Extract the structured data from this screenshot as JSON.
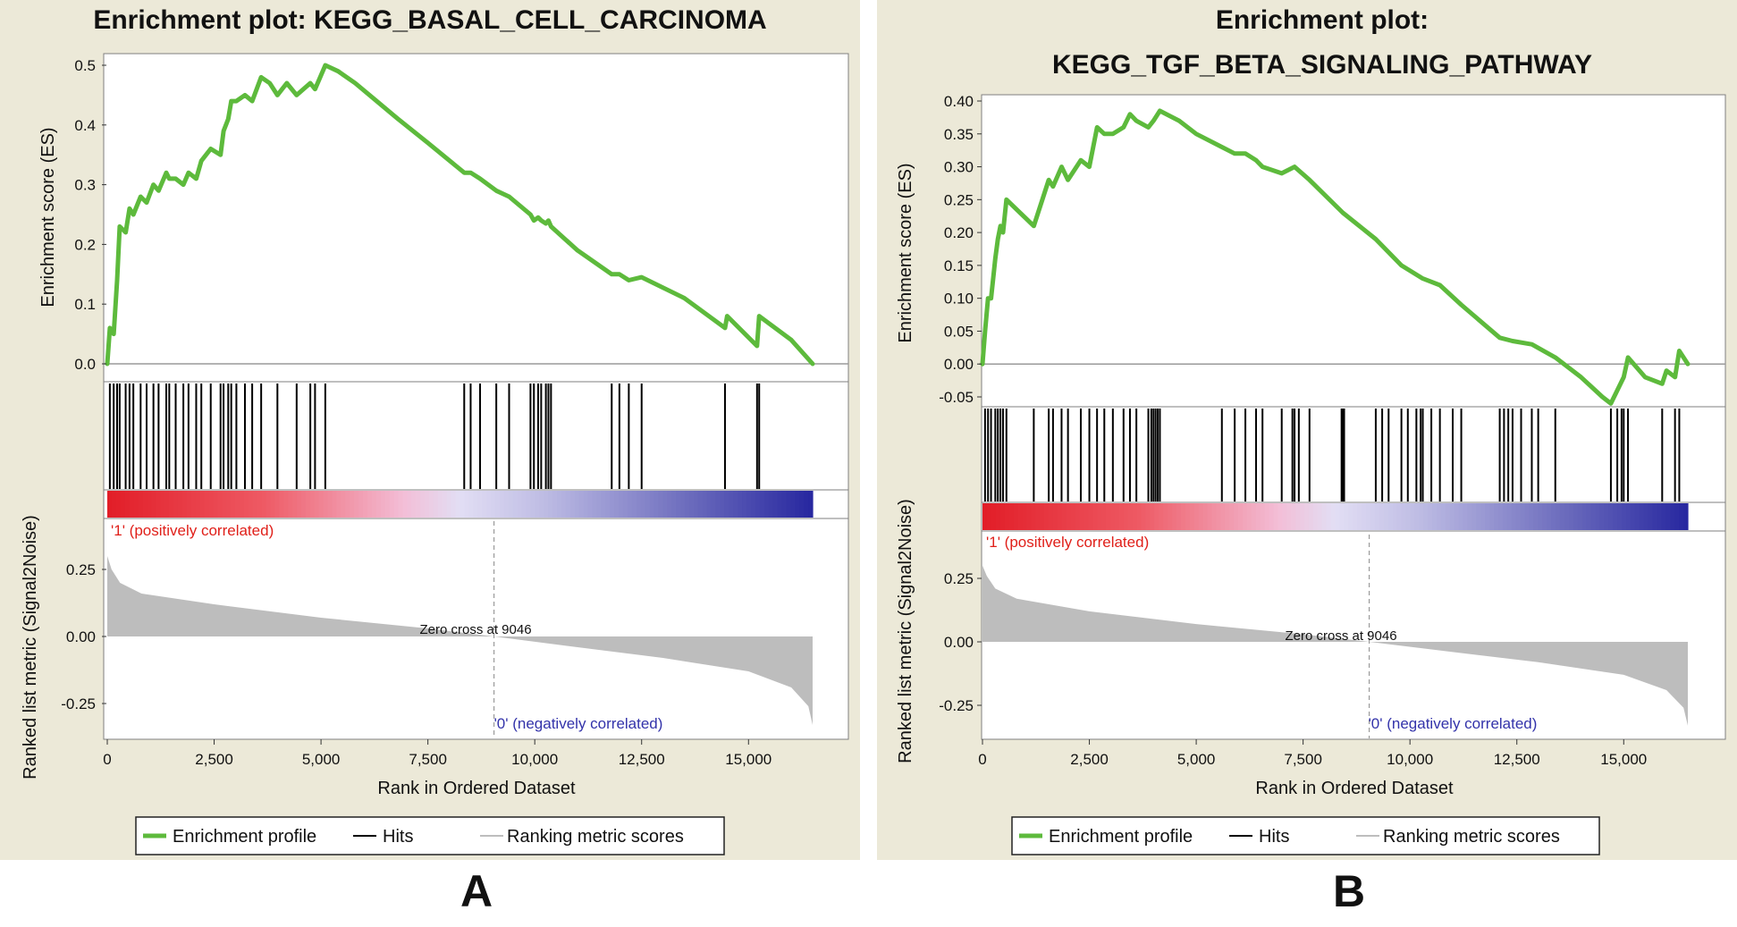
{
  "colors": {
    "panel_bg": "#ece9d8",
    "profile": "#5dba3c",
    "hits": "#000000",
    "metric": "#bdbdbd",
    "pos_label": "#e0201a",
    "neg_label": "#3333aa"
  },
  "common": {
    "es_axis_label": "Enrichment score (ES)",
    "metric_axis_label": "Ranked list metric (Signal2Noise)",
    "x_axis_label": "Rank in Ordered Dataset",
    "pos_label": "'1' (positively correlated)",
    "neg_label": "'0' (negatively correlated)",
    "zero_cross": "Zero cross at 9046",
    "legend_profile": "Enrichment profile",
    "legend_hits": "Hits",
    "legend_metric": "Ranking metric scores",
    "x_ticks": [
      0,
      2500,
      5000,
      7500,
      10000,
      12500,
      15000
    ],
    "x_tick_labels": [
      "0",
      "2,500",
      "5,000",
      "7,500",
      "10,000",
      "12,500",
      "15,000"
    ],
    "metric_ticks": [
      0.25,
      0.0,
      -0.25
    ],
    "metric_tick_labels": [
      "0.25",
      "0.00",
      "-0.25"
    ]
  },
  "chart_data": [
    {
      "type": "line",
      "panel_label": "A",
      "title_lines": [
        "Enrichment plot: KEGG_BASAL_CELL_CARCINOMA"
      ],
      "xlabel": "Rank in Ordered Dataset",
      "ylabel": "Enrichment score (ES)",
      "xlim": [
        0,
        17500
      ],
      "ylim": [
        0,
        0.5
      ],
      "es_ticks": [
        0.0,
        0.1,
        0.2,
        0.3,
        0.4,
        0.5
      ],
      "es_tick_labels": [
        "0.0",
        "0.1",
        "0.2",
        "0.3",
        "0.4",
        "0.5"
      ],
      "n_genes": 16500,
      "zero_cross": 9046,
      "hits": [
        60,
        150,
        230,
        290,
        430,
        520,
        610,
        780,
        920,
        1080,
        1200,
        1380,
        1450,
        1600,
        1780,
        1900,
        2080,
        2200,
        2420,
        2650,
        2720,
        2830,
        2900,
        3020,
        3220,
        3390,
        3600,
        3980,
        4430,
        4750,
        4860,
        5100,
        8350,
        8500,
        8720,
        9100,
        9400,
        9900,
        9980,
        10080,
        10150,
        10260,
        10320,
        10380,
        11800,
        11980,
        12200,
        12500,
        14450,
        15200,
        15250
      ],
      "es_points": [
        [
          0,
          0.0
        ],
        [
          60,
          0.06
        ],
        [
          150,
          0.05
        ],
        [
          230,
          0.14
        ],
        [
          290,
          0.23
        ],
        [
          430,
          0.22
        ],
        [
          520,
          0.26
        ],
        [
          610,
          0.25
        ],
        [
          780,
          0.28
        ],
        [
          920,
          0.27
        ],
        [
          1080,
          0.3
        ],
        [
          1200,
          0.29
        ],
        [
          1380,
          0.32
        ],
        [
          1450,
          0.31
        ],
        [
          1600,
          0.31
        ],
        [
          1780,
          0.3
        ],
        [
          1900,
          0.32
        ],
        [
          2080,
          0.31
        ],
        [
          2200,
          0.34
        ],
        [
          2420,
          0.36
        ],
        [
          2650,
          0.35
        ],
        [
          2720,
          0.39
        ],
        [
          2830,
          0.41
        ],
        [
          2900,
          0.44
        ],
        [
          3020,
          0.44
        ],
        [
          3220,
          0.45
        ],
        [
          3390,
          0.44
        ],
        [
          3600,
          0.48
        ],
        [
          3800,
          0.47
        ],
        [
          3980,
          0.45
        ],
        [
          4200,
          0.47
        ],
        [
          4430,
          0.45
        ],
        [
          4750,
          0.47
        ],
        [
          4860,
          0.46
        ],
        [
          5100,
          0.5
        ],
        [
          5400,
          0.49
        ],
        [
          5800,
          0.47
        ],
        [
          6300,
          0.44
        ],
        [
          6800,
          0.41
        ],
        [
          7500,
          0.37
        ],
        [
          8350,
          0.32
        ],
        [
          8500,
          0.32
        ],
        [
          8720,
          0.31
        ],
        [
          9100,
          0.29
        ],
        [
          9400,
          0.28
        ],
        [
          9900,
          0.25
        ],
        [
          9980,
          0.24
        ],
        [
          10080,
          0.245
        ],
        [
          10150,
          0.24
        ],
        [
          10260,
          0.235
        ],
        [
          10320,
          0.24
        ],
        [
          10380,
          0.23
        ],
        [
          11000,
          0.19
        ],
        [
          11800,
          0.15
        ],
        [
          11980,
          0.15
        ],
        [
          12200,
          0.14
        ],
        [
          12500,
          0.145
        ],
        [
          13500,
          0.11
        ],
        [
          14450,
          0.06
        ],
        [
          14500,
          0.08
        ],
        [
          15200,
          0.03
        ],
        [
          15250,
          0.08
        ],
        [
          16000,
          0.04
        ],
        [
          16500,
          0.0
        ]
      ],
      "metric_points": [
        [
          0,
          0.3
        ],
        [
          100,
          0.25
        ],
        [
          300,
          0.2
        ],
        [
          800,
          0.16
        ],
        [
          2500,
          0.12
        ],
        [
          5000,
          0.07
        ],
        [
          7500,
          0.03
        ],
        [
          9046,
          0.0
        ],
        [
          11000,
          -0.04
        ],
        [
          13000,
          -0.08
        ],
        [
          15000,
          -0.13
        ],
        [
          16000,
          -0.19
        ],
        [
          16400,
          -0.26
        ],
        [
          16500,
          -0.33
        ]
      ]
    },
    {
      "type": "line",
      "panel_label": "B",
      "title_lines": [
        "Enrichment plot:",
        "KEGG_TGF_BETA_SIGNALING_PATHWAY"
      ],
      "xlabel": "Rank in Ordered Dataset",
      "ylabel": "Enrichment score (ES)",
      "xlim": [
        0,
        17500
      ],
      "ylim": [
        -0.05,
        0.4
      ],
      "es_ticks": [
        0.4,
        0.35,
        0.3,
        0.25,
        0.2,
        0.15,
        0.1,
        0.05,
        0.0,
        -0.05
      ],
      "es_tick_labels": [
        "0.40",
        "0.35",
        "0.30",
        "0.25",
        "0.20",
        "0.15",
        "0.10",
        "0.05",
        "0.00",
        "-0.05"
      ],
      "n_genes": 16500,
      "zero_cross": 9046,
      "hits": [
        60,
        130,
        200,
        300,
        360,
        420,
        480,
        560,
        1200,
        1550,
        1650,
        1850,
        2000,
        2300,
        2500,
        2680,
        2850,
        3050,
        3300,
        3450,
        3600,
        3880,
        3950,
        4000,
        4050,
        4100,
        4150,
        5600,
        5900,
        6150,
        6400,
        6550,
        7000,
        7250,
        7300,
        7400,
        7650,
        8400,
        8430,
        8460,
        9200,
        9350,
        9500,
        9800,
        9950,
        10150,
        10250,
        10300,
        10500,
        10700,
        11000,
        11200,
        12100,
        12200,
        12300,
        12400,
        12600,
        12850,
        13000,
        13400,
        14700,
        14850,
        14950,
        15000,
        15100,
        15900,
        16200,
        16300
      ],
      "es_points": [
        [
          0,
          0.0
        ],
        [
          60,
          0.05
        ],
        [
          130,
          0.1
        ],
        [
          200,
          0.1
        ],
        [
          300,
          0.16
        ],
        [
          360,
          0.19
        ],
        [
          420,
          0.21
        ],
        [
          480,
          0.2
        ],
        [
          560,
          0.25
        ],
        [
          1200,
          0.21
        ],
        [
          1550,
          0.28
        ],
        [
          1650,
          0.27
        ],
        [
          1850,
          0.3
        ],
        [
          2000,
          0.28
        ],
        [
          2300,
          0.31
        ],
        [
          2500,
          0.3
        ],
        [
          2680,
          0.36
        ],
        [
          2850,
          0.35
        ],
        [
          3050,
          0.35
        ],
        [
          3300,
          0.36
        ],
        [
          3450,
          0.38
        ],
        [
          3600,
          0.37
        ],
        [
          3880,
          0.36
        ],
        [
          4000,
          0.37
        ],
        [
          4150,
          0.385
        ],
        [
          4600,
          0.37
        ],
        [
          5000,
          0.35
        ],
        [
          5600,
          0.33
        ],
        [
          5900,
          0.32
        ],
        [
          6150,
          0.32
        ],
        [
          6400,
          0.31
        ],
        [
          6550,
          0.3
        ],
        [
          7000,
          0.29
        ],
        [
          7300,
          0.3
        ],
        [
          7650,
          0.28
        ],
        [
          8430,
          0.23
        ],
        [
          9200,
          0.19
        ],
        [
          9800,
          0.15
        ],
        [
          10300,
          0.13
        ],
        [
          10700,
          0.12
        ],
        [
          11200,
          0.09
        ],
        [
          12100,
          0.04
        ],
        [
          12400,
          0.035
        ],
        [
          12850,
          0.03
        ],
        [
          13400,
          0.01
        ],
        [
          14000,
          -0.02
        ],
        [
          14500,
          -0.05
        ],
        [
          14700,
          -0.06
        ],
        [
          14850,
          -0.04
        ],
        [
          15000,
          -0.02
        ],
        [
          15100,
          0.01
        ],
        [
          15500,
          -0.02
        ],
        [
          15900,
          -0.03
        ],
        [
          16000,
          -0.01
        ],
        [
          16200,
          -0.02
        ],
        [
          16300,
          0.02
        ],
        [
          16500,
          0.0
        ]
      ],
      "metric_points": [
        [
          0,
          0.3
        ],
        [
          100,
          0.26
        ],
        [
          300,
          0.21
        ],
        [
          800,
          0.17
        ],
        [
          2500,
          0.12
        ],
        [
          5000,
          0.07
        ],
        [
          7500,
          0.03
        ],
        [
          9046,
          0.0
        ],
        [
          11000,
          -0.04
        ],
        [
          13000,
          -0.08
        ],
        [
          15000,
          -0.13
        ],
        [
          16000,
          -0.19
        ],
        [
          16400,
          -0.26
        ],
        [
          16500,
          -0.33
        ]
      ]
    }
  ]
}
